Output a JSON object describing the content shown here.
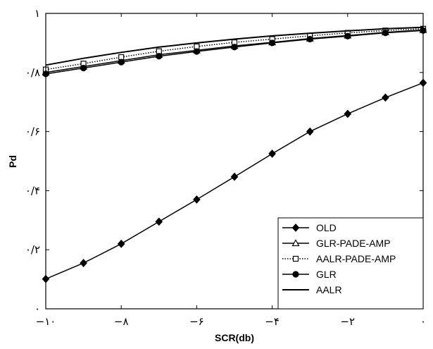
{
  "chart_data": {
    "type": "line",
    "xlabel": "SCR(db)",
    "ylabel": "Pd",
    "xlim": [
      -10,
      0
    ],
    "ylim": [
      0,
      1
    ],
    "x_ticks": [
      -10,
      -8,
      -6,
      -4,
      -2,
      0
    ],
    "x_tick_labels": [
      "−۱۰",
      "−۸",
      "−۶",
      "−۴",
      "−۲",
      "۰"
    ],
    "y_ticks": [
      0,
      0.2,
      0.4,
      0.6,
      0.8,
      1
    ],
    "y_tick_labels": [
      "۰",
      "۰/۲",
      "۰/۴",
      "۰/۶",
      "۰/۸",
      "۱"
    ],
    "grid": false,
    "legend_position": "bottom-right",
    "x": [
      -10,
      -9,
      -8,
      -7,
      -6,
      -5,
      -4,
      -3,
      -2,
      -1,
      0
    ],
    "series": [
      {
        "name": "OLD",
        "marker": "diamond",
        "line": "solid",
        "values": [
          0.101,
          0.155,
          0.22,
          0.295,
          0.37,
          0.447,
          0.525,
          0.6,
          0.66,
          0.715,
          0.765
        ]
      },
      {
        "name": "GLR-PADE-AMP",
        "marker": "triangle",
        "line": "solid",
        "values": [
          0.8,
          0.82,
          0.84,
          0.86,
          0.875,
          0.89,
          0.902,
          0.915,
          0.925,
          0.936,
          0.944
        ]
      },
      {
        "name": "AALR-PADE-AMP",
        "marker": "square",
        "line": "dotted",
        "values": [
          0.81,
          0.83,
          0.852,
          0.872,
          0.888,
          0.902,
          0.913,
          0.924,
          0.934,
          0.942,
          0.948
        ]
      },
      {
        "name": "GLR",
        "marker": "circle",
        "line": "solid",
        "values": [
          0.795,
          0.815,
          0.835,
          0.855,
          0.871,
          0.886,
          0.9,
          0.913,
          0.923,
          0.934,
          0.942
        ]
      },
      {
        "name": "AALR",
        "marker": "none",
        "line": "solid",
        "values": [
          0.825,
          0.848,
          0.868,
          0.886,
          0.9,
          0.913,
          0.924,
          0.933,
          0.941,
          0.948,
          0.953
        ]
      }
    ]
  }
}
